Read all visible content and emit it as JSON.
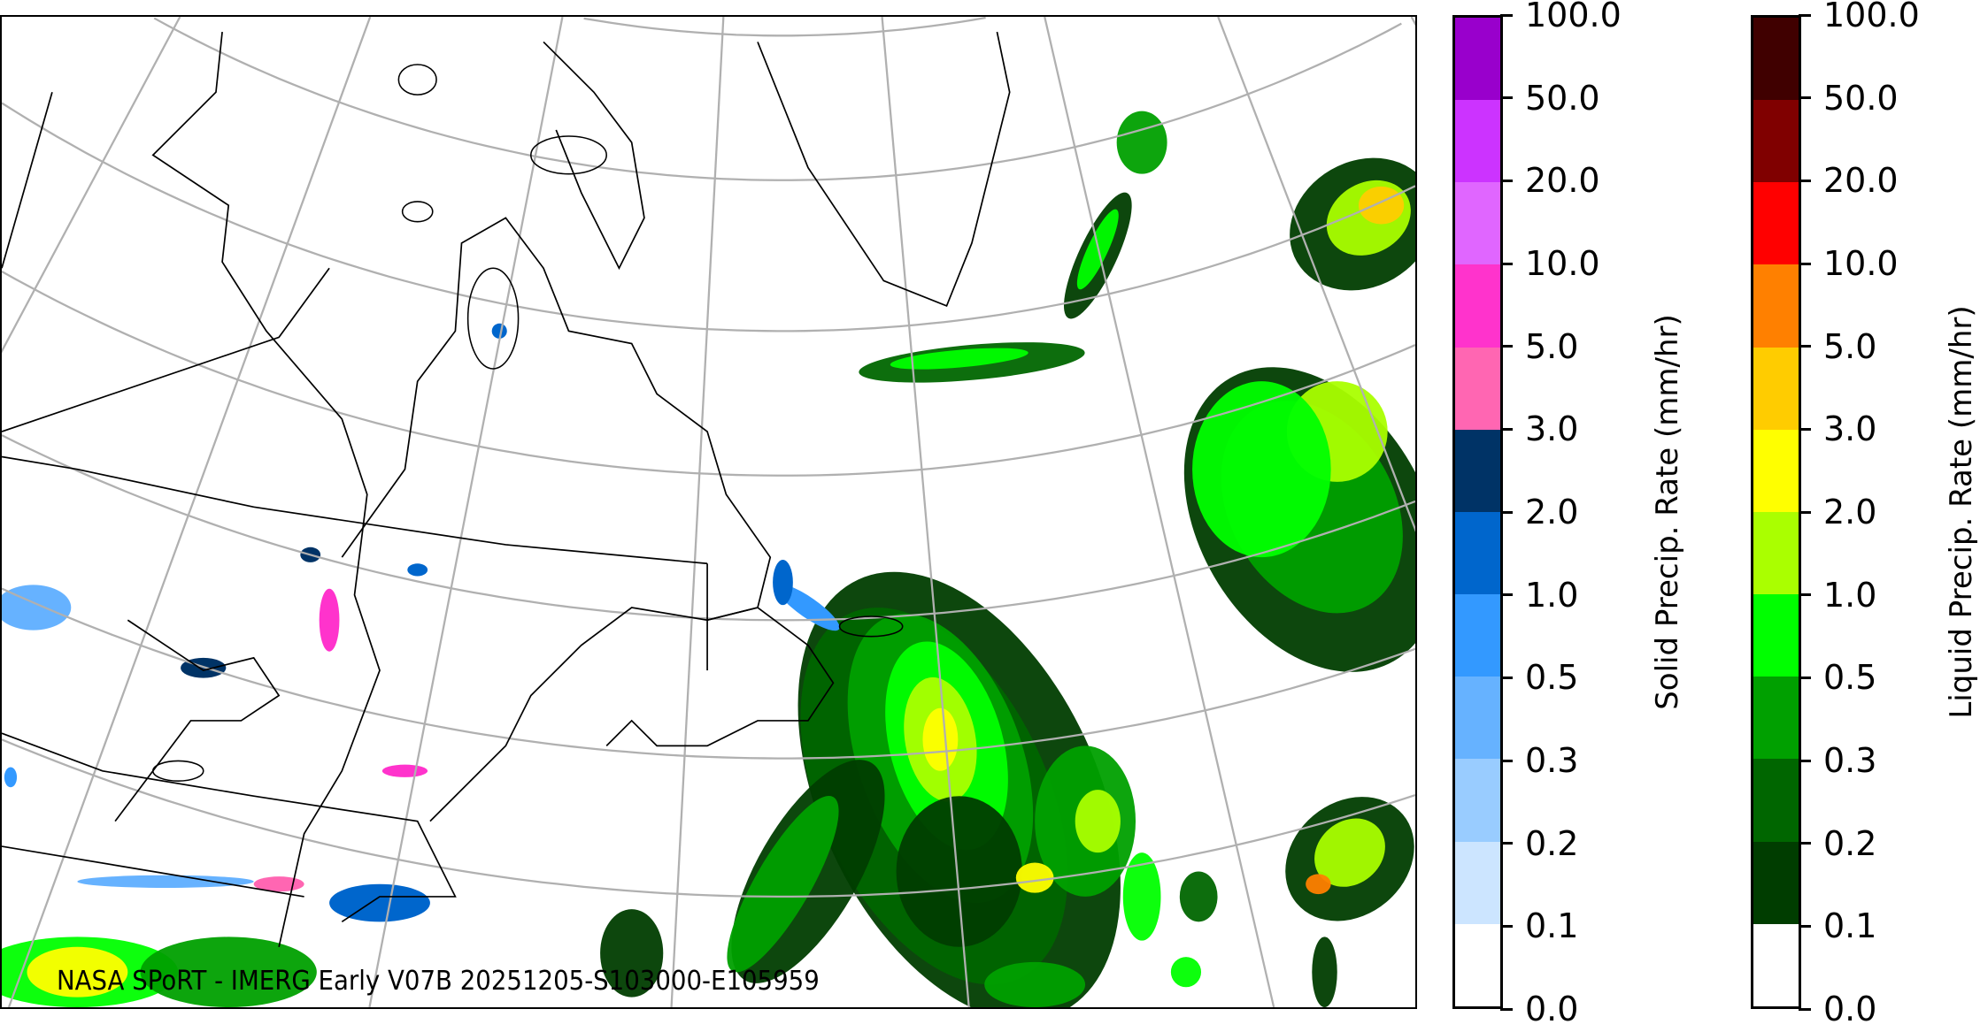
{
  "map": {
    "caption": "NASA SPoRT - IMERG Early V07B 20251205-S103000-E105959",
    "graticule_color": "#b0b0b0",
    "coastline_color": "#000000"
  },
  "solid_colorbar": {
    "label": "Solid Precip. Rate (mm/hr)",
    "ticks": [
      "0.0",
      "0.1",
      "0.2",
      "0.3",
      "0.5",
      "1.0",
      "2.0",
      "3.0",
      "5.0",
      "10.0",
      "20.0",
      "50.0",
      "100.0"
    ],
    "colors": [
      "#ffffff",
      "#cce5ff",
      "#99ccff",
      "#66b2ff",
      "#3399ff",
      "#0066cc",
      "#003366",
      "#ff66b2",
      "#ff33cc",
      "#e066ff",
      "#cc33ff",
      "#9900cc"
    ]
  },
  "liquid_colorbar": {
    "label": "Liquid Precip. Rate (mm/hr)",
    "ticks": [
      "0.0",
      "0.1",
      "0.2",
      "0.3",
      "0.5",
      "1.0",
      "2.0",
      "3.0",
      "5.0",
      "10.0",
      "20.0",
      "50.0",
      "100.0"
    ],
    "colors": [
      "#ffffff",
      "#003d00",
      "#006600",
      "#00a000",
      "#00ff00",
      "#aaff00",
      "#ffff00",
      "#ffcc00",
      "#ff8000",
      "#ff0000",
      "#800000",
      "#400000"
    ]
  }
}
